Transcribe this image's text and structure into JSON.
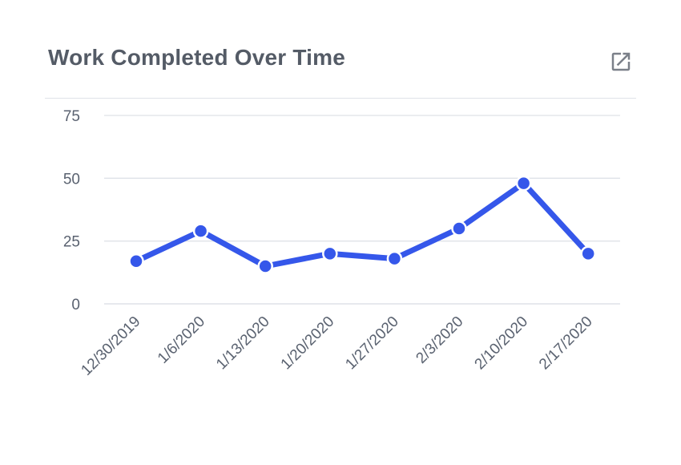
{
  "header": {
    "title": "Work Completed Over Time",
    "expand_icon": "open-in-new-icon"
  },
  "colors": {
    "line": "#3557ea",
    "grid": "#dfe2e8",
    "text": "#5a6270"
  },
  "chart_data": {
    "type": "line",
    "title": "Work Completed Over Time",
    "xlabel": "",
    "ylabel": "",
    "categories": [
      "12/30/2019",
      "1/6/2020",
      "1/13/2020",
      "1/20/2020",
      "1/27/2020",
      "2/3/2020",
      "2/10/2020",
      "2/17/2020"
    ],
    "series": [
      {
        "values": [
          17,
          29,
          15,
          20,
          18,
          30,
          48,
          20
        ]
      }
    ],
    "ylim": [
      0,
      75
    ],
    "yticks": [
      0,
      25,
      50,
      75
    ],
    "grid": true,
    "legend": "none"
  }
}
